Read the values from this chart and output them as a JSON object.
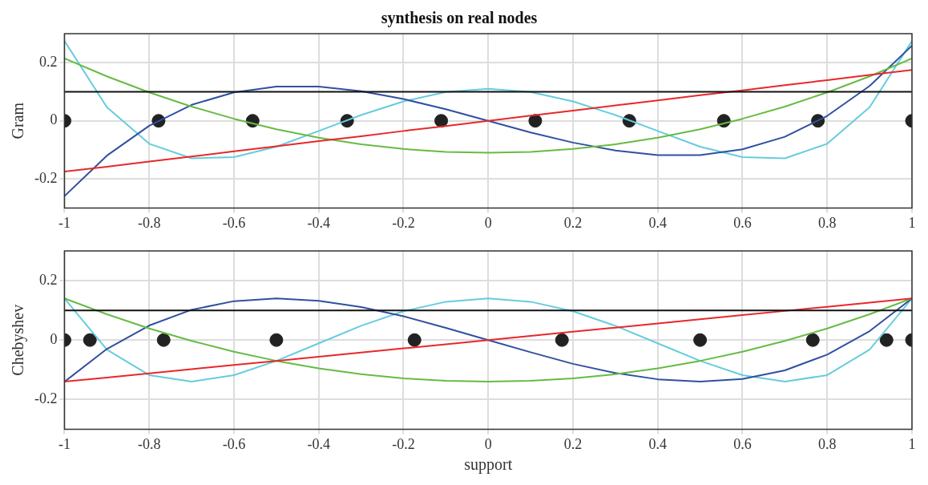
{
  "chart_data": [
    {
      "type": "line",
      "title": "synthesis on real nodes",
      "ylabel": "Gram",
      "xlim": [
        -1,
        1
      ],
      "xticks": [
        -1,
        -0.8,
        -0.6,
        -0.4,
        -0.2,
        0,
        0.2,
        0.4,
        0.6,
        0.8,
        1
      ],
      "ylim": [
        -0.3,
        0.3
      ],
      "yticks": [
        -0.2,
        0,
        0.2
      ],
      "grid": true,
      "marker": "none",
      "x": [
        -1,
        -0.9,
        -0.8,
        -0.7,
        -0.6,
        -0.5,
        -0.4,
        -0.3,
        -0.2,
        -0.1,
        0,
        0.1,
        0.2,
        0.3,
        0.4,
        0.5,
        0.6,
        0.7,
        0.8,
        0.9,
        1
      ],
      "series": [
        {
          "color": "#111111",
          "x": [
            -1,
            1
          ],
          "values": [
            0.1,
            0.1
          ]
        },
        {
          "color": "#e8282a",
          "values": [
            -0.175,
            -0.158,
            -0.14,
            -0.123,
            -0.105,
            -0.088,
            -0.07,
            -0.053,
            -0.035,
            -0.018,
            0,
            0.018,
            0.035,
            0.053,
            0.07,
            0.088,
            0.105,
            0.123,
            0.14,
            0.158,
            0.175
          ]
        },
        {
          "color": "#66bb44",
          "values": [
            0.215,
            0.153,
            0.098,
            0.049,
            0.007,
            -0.029,
            -0.058,
            -0.081,
            -0.097,
            -0.107,
            -0.11,
            -0.107,
            -0.097,
            -0.081,
            -0.058,
            -0.029,
            0.007,
            0.049,
            0.098,
            0.153,
            0.215
          ]
        },
        {
          "color": "#3050a0",
          "values": [
            -0.259,
            -0.12,
            -0.017,
            0.055,
            0.098,
            0.118,
            0.118,
            0.102,
            0.075,
            0.04,
            0,
            -0.04,
            -0.075,
            -0.102,
            -0.118,
            -0.118,
            -0.098,
            -0.055,
            0.017,
            0.12,
            0.259
          ]
        },
        {
          "color": "#66ccdd",
          "values": [
            0.275,
            0.047,
            -0.079,
            -0.129,
            -0.125,
            -0.089,
            -0.035,
            0.02,
            0.067,
            0.099,
            0.11,
            0.099,
            0.067,
            0.02,
            -0.035,
            -0.089,
            -0.125,
            -0.129,
            -0.079,
            0.047,
            0.275
          ]
        },
        {
          "type": "scatter",
          "marker": "circle",
          "color": "#222222",
          "x": [
            -1,
            -0.778,
            -0.556,
            -0.333,
            -0.111,
            0.111,
            0.333,
            0.556,
            0.778,
            1
          ],
          "values": [
            0,
            0,
            0,
            0,
            0,
            0,
            0,
            0,
            0,
            0
          ]
        }
      ]
    },
    {
      "type": "line",
      "xlabel": "support",
      "ylabel": "Chebyshev",
      "xlim": [
        -1,
        1
      ],
      "xticks": [
        -1,
        -0.8,
        -0.6,
        -0.4,
        -0.2,
        0,
        0.2,
        0.4,
        0.6,
        0.8,
        1
      ],
      "ylim": [
        -0.3,
        0.3
      ],
      "yticks": [
        -0.2,
        0,
        0.2
      ],
      "grid": true,
      "marker": "none",
      "x": [
        -1,
        -0.9,
        -0.8,
        -0.7,
        -0.6,
        -0.5,
        -0.4,
        -0.3,
        -0.2,
        -0.1,
        0,
        0.1,
        0.2,
        0.3,
        0.4,
        0.5,
        0.6,
        0.7,
        0.8,
        0.9,
        1
      ],
      "series": [
        {
          "color": "#111111",
          "x": [
            -1,
            1
          ],
          "values": [
            0.1,
            0.1
          ]
        },
        {
          "color": "#e8282a",
          "values": [
            -0.14,
            -0.126,
            -0.112,
            -0.098,
            -0.084,
            -0.07,
            -0.056,
            -0.042,
            -0.028,
            -0.014,
            0,
            0.014,
            0.028,
            0.042,
            0.056,
            0.07,
            0.084,
            0.098,
            0.112,
            0.126,
            0.14
          ]
        },
        {
          "color": "#66bb44",
          "values": [
            0.14,
            0.087,
            0.039,
            -0.003,
            -0.039,
            -0.07,
            -0.095,
            -0.115,
            -0.129,
            -0.137,
            -0.14,
            -0.137,
            -0.129,
            -0.115,
            -0.095,
            -0.07,
            -0.039,
            -0.003,
            0.039,
            0.087,
            0.14
          ]
        },
        {
          "color": "#3050a0",
          "values": [
            -0.14,
            -0.03,
            0.049,
            0.102,
            0.131,
            0.14,
            0.132,
            0.111,
            0.08,
            0.041,
            0,
            -0.041,
            -0.08,
            -0.111,
            -0.132,
            -0.14,
            -0.131,
            -0.102,
            -0.049,
            0.03,
            0.14
          ]
        },
        {
          "color": "#66ccdd",
          "values": [
            0.14,
            -0.032,
            -0.118,
            -0.14,
            -0.118,
            -0.07,
            -0.011,
            0.048,
            0.097,
            0.129,
            0.14,
            0.129,
            0.097,
            0.048,
            -0.011,
            -0.07,
            -0.118,
            -0.14,
            -0.118,
            -0.032,
            0.14
          ]
        },
        {
          "type": "scatter",
          "marker": "circle",
          "color": "#222222",
          "x": [
            -1,
            -0.94,
            -0.766,
            -0.5,
            -0.174,
            0.174,
            0.5,
            0.766,
            0.94,
            1
          ],
          "values": [
            0,
            0,
            0,
            0,
            0,
            0,
            0,
            0,
            0,
            0
          ]
        }
      ]
    }
  ]
}
